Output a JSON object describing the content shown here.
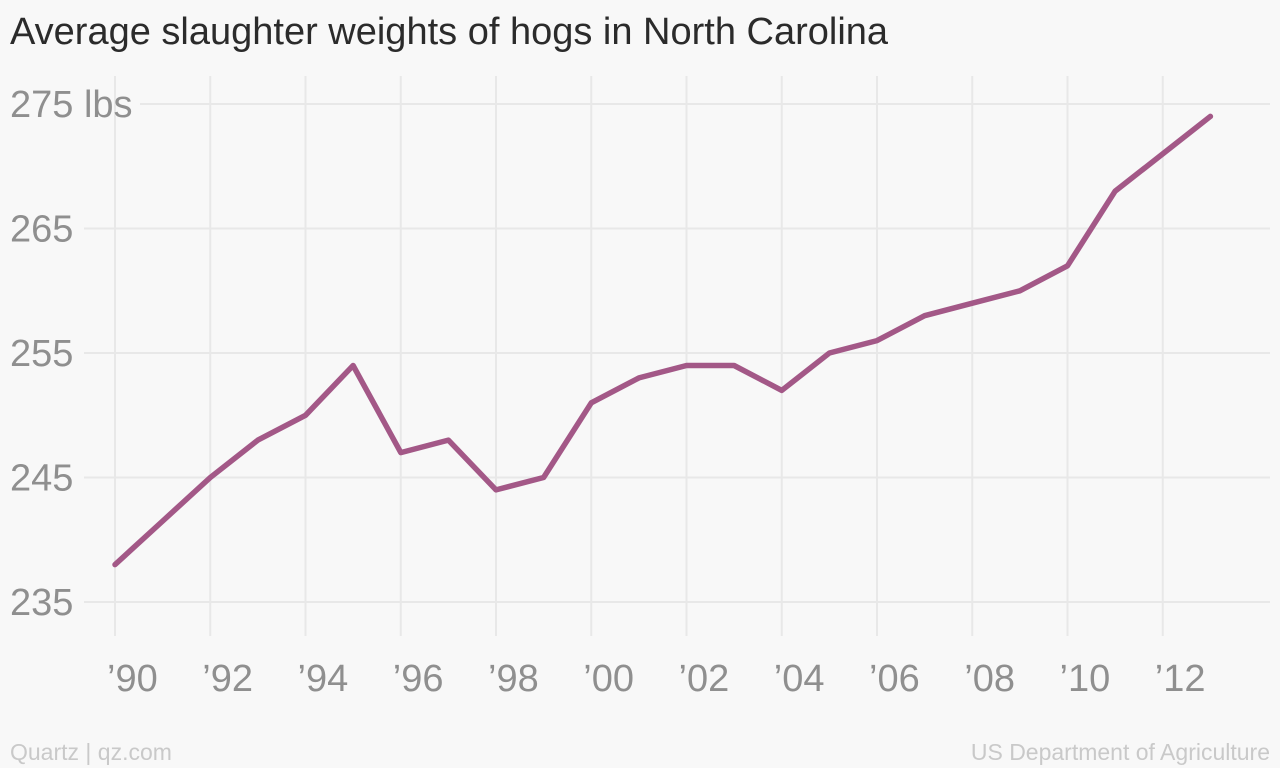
{
  "chart_data": {
    "type": "line",
    "title": "Average slaughter weights of hogs in North Carolina",
    "xlabel": "",
    "ylabel": "",
    "x": [
      1990,
      1991,
      1992,
      1993,
      1994,
      1995,
      1996,
      1997,
      1998,
      1999,
      2000,
      2001,
      2002,
      2003,
      2004,
      2005,
      2006,
      2007,
      2008,
      2009,
      2010,
      2011,
      2012,
      2013
    ],
    "series": [
      {
        "values": [
          238,
          241.5,
          245,
          248,
          250,
          254,
          247,
          248,
          244,
          245,
          251,
          253,
          254,
          254,
          252,
          255,
          256,
          258,
          259,
          260,
          262,
          268,
          271,
          274
        ]
      }
    ],
    "ylim": [
      235,
      275
    ],
    "xlim": [
      1990,
      2014
    ],
    "y_ticks": [
      235,
      245,
      255,
      265,
      275
    ],
    "y_tick_labels": [
      "235",
      "245",
      "255",
      "265",
      "275 lbs"
    ],
    "x_ticks": [
      1990,
      1992,
      1994,
      1996,
      1998,
      2000,
      2002,
      2004,
      2006,
      2008,
      2010,
      2012
    ],
    "x_tick_labels": [
      "’90",
      "’92",
      "’94",
      "’96",
      "’98",
      "’00",
      "’02",
      "’04",
      "’06",
      "’08",
      "’10",
      "’12"
    ],
    "grid": true,
    "legend": "none"
  },
  "colors": {
    "line": "#a35887",
    "grid": "#e8e8e8",
    "tick_text": "#8f8f8f",
    "title_text": "#2b2b2b",
    "footer_text": "#c9c9c9",
    "background": "#f8f8f8"
  },
  "footer": {
    "left": "Quartz | qz.com",
    "right": "US Department of Agriculture"
  }
}
